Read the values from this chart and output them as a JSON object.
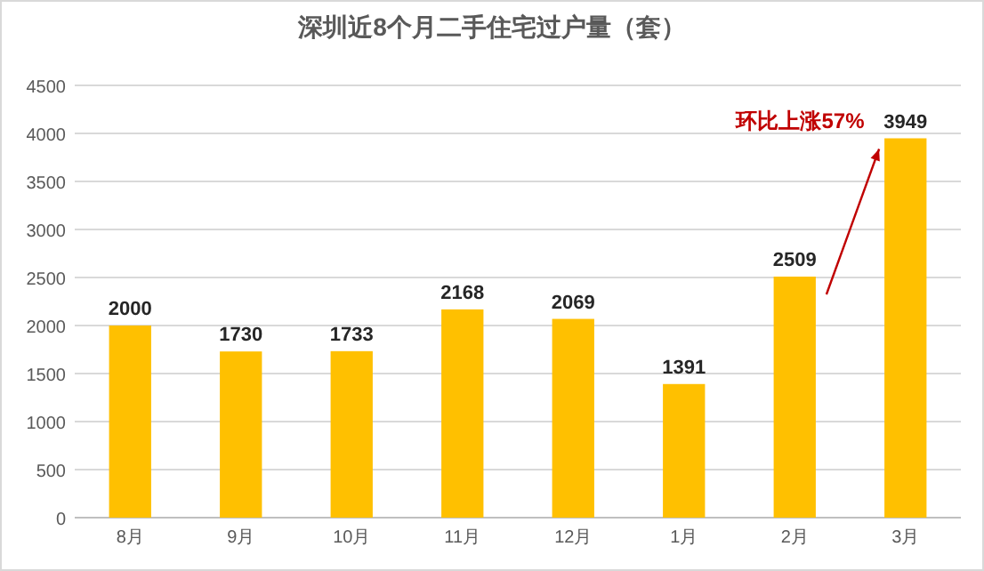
{
  "chart_data": {
    "type": "bar",
    "title": "深圳近8个月二手住宅过户量（套）",
    "categories": [
      "8月",
      "9月",
      "10月",
      "11月",
      "12月",
      "1月",
      "2月",
      "3月"
    ],
    "values": [
      2000,
      1730,
      1733,
      2168,
      2069,
      1391,
      2509,
      3949
    ],
    "color": "#ffc000",
    "ylim": [
      0,
      4500
    ],
    "yticks": [
      0,
      500,
      1000,
      1500,
      2000,
      2500,
      3000,
      3500,
      4000,
      4500
    ],
    "grid": "y",
    "data_labels": true,
    "annotations": [
      "环比上涨57%"
    ]
  }
}
